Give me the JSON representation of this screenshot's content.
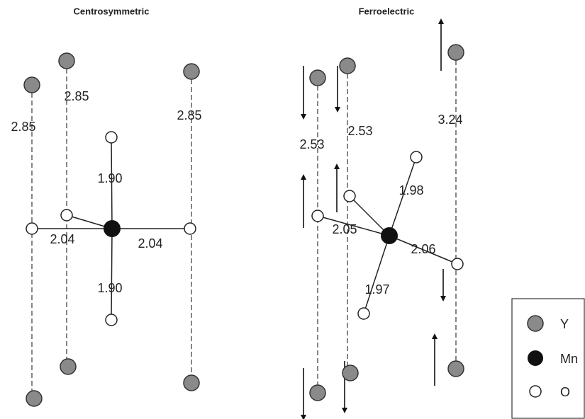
{
  "panels": [
    {
      "title": "Centrosymmetric",
      "labels": [
        "2.85",
        "2.85",
        "2.85",
        "1.90",
        "2.04",
        "2.04",
        "1.90"
      ]
    },
    {
      "title": "Ferroelectric",
      "labels": [
        "2.53",
        "2.53",
        "3.24",
        "1.98",
        "2.05",
        "2.06",
        "1.97"
      ]
    }
  ],
  "legend": [
    {
      "label": "Y"
    },
    {
      "label": "Mn"
    },
    {
      "label": "O"
    }
  ]
}
